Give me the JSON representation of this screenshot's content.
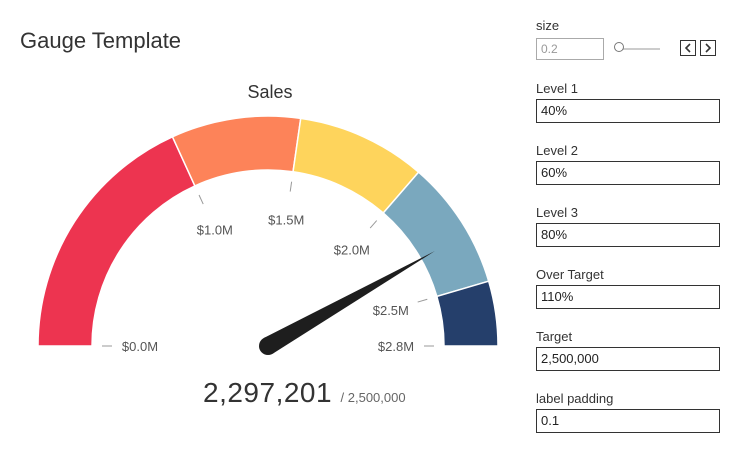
{
  "title": "Gauge Template",
  "chart_data": {
    "type": "gauge",
    "title": "Sales",
    "value": 2297201,
    "value_label": "2,297,201",
    "target": 2500000,
    "target_label": "/ 2,500,000",
    "max": 2750000,
    "bands": [
      {
        "from": 0,
        "to": 0.4,
        "color": "#ed3450"
      },
      {
        "from": 0.4,
        "to": 0.6,
        "color": "#fd8359"
      },
      {
        "from": 0.6,
        "to": 0.8,
        "color": "#fed45c"
      },
      {
        "from": 0.8,
        "to": 1.0,
        "color": "#7aa8be"
      },
      {
        "from": 1.0,
        "to": 1.1,
        "color": "#253f6b"
      }
    ],
    "ticks": [
      {
        "value": 0,
        "label": "$0.0M"
      },
      {
        "value": 1000000,
        "label": "$1.0M"
      },
      {
        "value": 1500000,
        "label": "$1.5M"
      },
      {
        "value": 2000000,
        "label": "$2.0M"
      },
      {
        "value": 2500000,
        "label": "$2.5M"
      },
      {
        "value": 2750000,
        "label": "$2.8M"
      }
    ]
  },
  "params": {
    "size": {
      "label": "size",
      "value": "0.2",
      "fraction": 0.2
    },
    "fields": [
      {
        "label": "Level 1",
        "value": "40%"
      },
      {
        "label": "Level 2",
        "value": "60%"
      },
      {
        "label": "Level 3",
        "value": "80%"
      },
      {
        "label": "Over Target",
        "value": "110%"
      },
      {
        "label": "Target",
        "value": "2,500,000"
      },
      {
        "label": "label padding",
        "value": "0.1"
      }
    ]
  },
  "icons": {
    "prev": "chevron-left-icon",
    "next": "chevron-right-icon"
  }
}
